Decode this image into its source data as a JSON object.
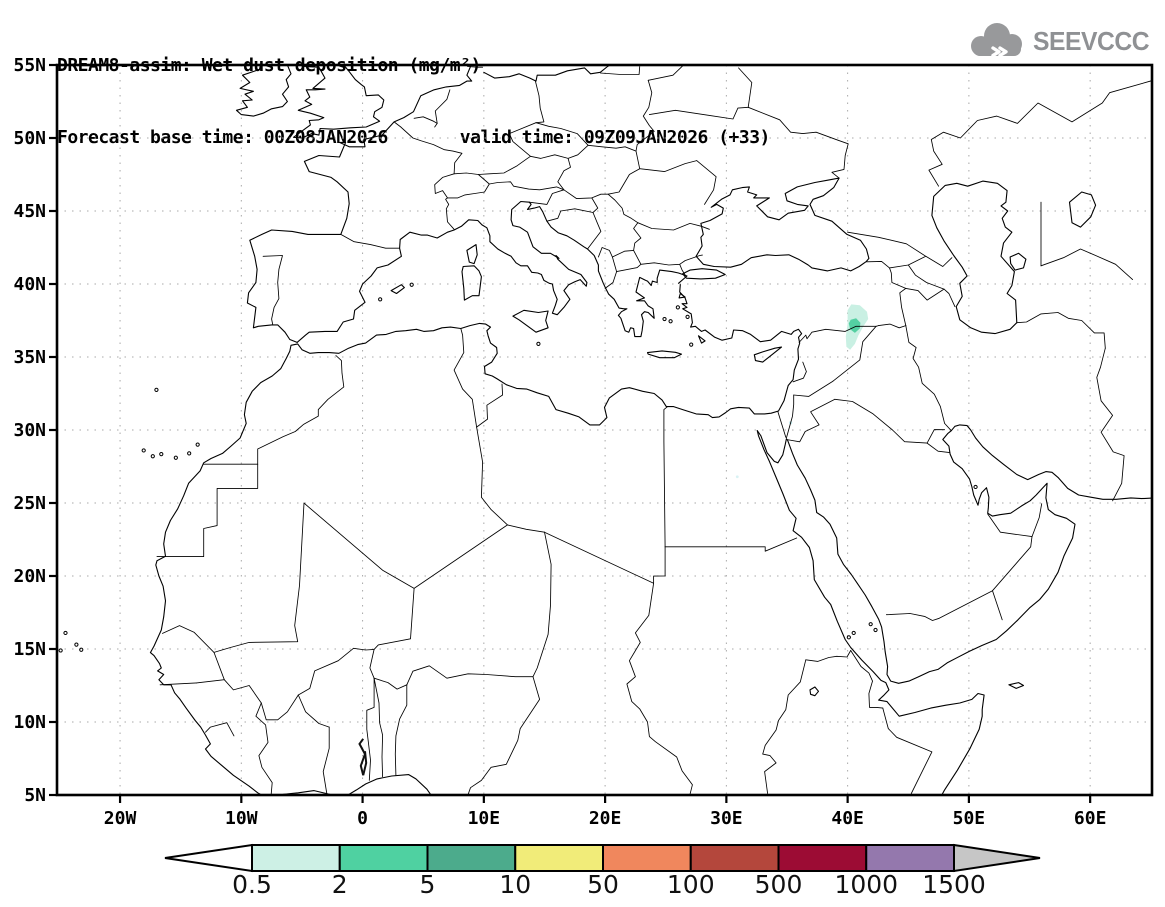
{
  "header": {
    "title_line1": "DREAM8-assim: Wet dust deposition (mg/m²)",
    "forecast_base": "Forecast base time: 00Z08JAN2026",
    "valid_time": "valid time: 09Z09JAN2026 (+33)"
  },
  "logo": {
    "text": "SEEVCCC",
    "icon": "cloud-icon",
    "color": "#8f9194"
  },
  "map": {
    "x_tick_labels": [
      "20W",
      "10W",
      "0",
      "10E",
      "20E",
      "30E",
      "40E",
      "50E",
      "60E"
    ],
    "x_tick_lons": [
      -20,
      -10,
      0,
      10,
      20,
      30,
      40,
      50,
      60
    ],
    "y_tick_labels": [
      "55N",
      "50N",
      "45N",
      "40N",
      "35N",
      "30N",
      "25N",
      "20N",
      "15N",
      "10N",
      "5N"
    ],
    "y_tick_lats": [
      55,
      50,
      45,
      40,
      35,
      30,
      25,
      20,
      15,
      10,
      5
    ],
    "lon_range": [
      -25.2,
      65.1
    ],
    "lat_range": [
      5,
      55
    ],
    "deposition": {
      "location": "Turkey-Syria border region near 40E 37N",
      "outer_level": "0.5-2 mg/m²",
      "core_level": "2-5 mg/m²",
      "outer_color": "#c9f0e3",
      "core_color": "#54d0a2"
    }
  },
  "legend": {
    "tick_labels": [
      "0.5",
      "2",
      "5",
      "10",
      "50",
      "100",
      "500",
      "1000",
      "1500"
    ],
    "segment_colors": [
      "#cdf0e5",
      "#4fd1a1",
      "#4cab8c",
      "#f1ec79",
      "#f0875d",
      "#b4473c",
      "#9c0c34",
      "#9478ad"
    ],
    "left_arrow_color": "#ffffff",
    "right_arrow_color": "#c6c6c6"
  }
}
